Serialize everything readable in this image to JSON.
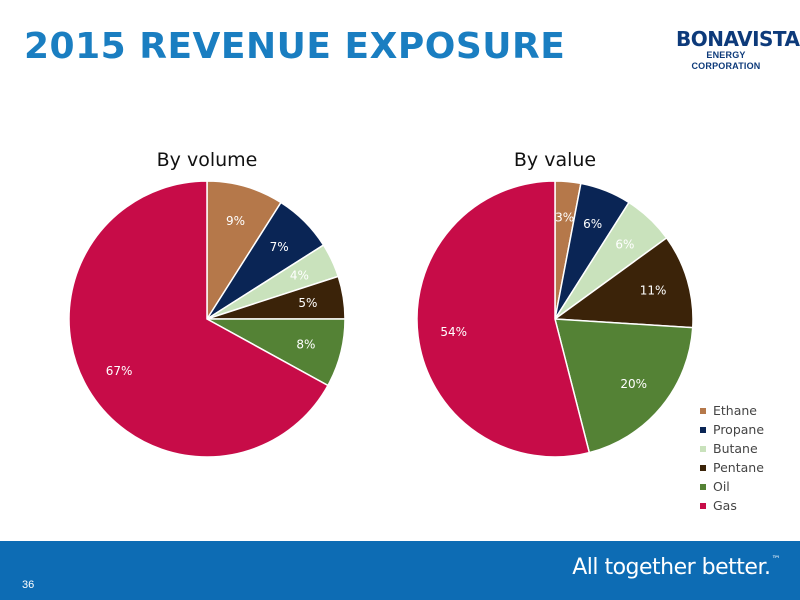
{
  "slide": {
    "title": "2015 REVENUE EXPOSURE",
    "page_number": "36",
    "tagline": "All together better.",
    "tagline_mark": "™"
  },
  "logo": {
    "name": "BONAVISTA",
    "subtitle": "ENERGY CORPORATION"
  },
  "colors": {
    "title": "#1a7ec1",
    "footer": "#0d6cb4",
    "Ethane": "#b5784a",
    "Propane": "#0a2555",
    "Butane": "#c9e2bc",
    "Pentane": "#3b2309",
    "Oil": "#548235",
    "Gas": "#c70c48"
  },
  "chart_data": [
    {
      "type": "pie",
      "title": "By volume",
      "labels": [
        "Ethane",
        "Propane",
        "Butane",
        "Pentane",
        "Oil",
        "Gas"
      ],
      "values": [
        9,
        7,
        4,
        5,
        8,
        67
      ],
      "data_labels": [
        "9%",
        "7%",
        "4%",
        "5%",
        "8%",
        "67%"
      ],
      "start_angle": "12 o'clock",
      "direction": "clockwise"
    },
    {
      "type": "pie",
      "title": "By value",
      "labels": [
        "Ethane",
        "Propane",
        "Butane",
        "Pentane",
        "Oil",
        "Gas"
      ],
      "values": [
        3,
        6,
        6,
        11,
        20,
        54
      ],
      "data_labels": [
        "3%",
        "6%",
        "6%",
        "11%",
        "20%",
        "54%"
      ],
      "start_angle": "12 o'clock",
      "direction": "clockwise",
      "legend": "right"
    }
  ],
  "legend": {
    "items": [
      "Ethane",
      "Propane",
      "Butane",
      "Pentane",
      "Oil",
      "Gas"
    ]
  }
}
